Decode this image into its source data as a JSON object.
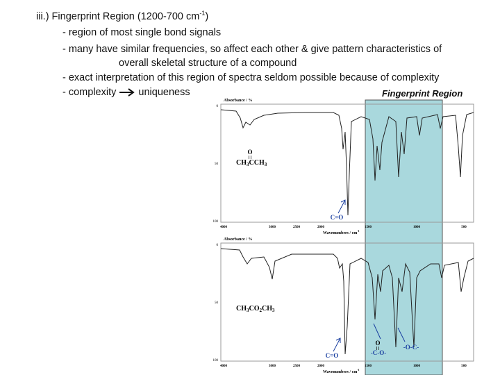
{
  "slide": {
    "title": {
      "text": "iii.) Fingerprint Region (1200-700 cm",
      "sup": "-1",
      "end": ")"
    },
    "bullets": [
      "- region of most single bond signals",
      "- many have similar frequencies, so affect each other & give pattern characteristics of",
      "overall skeletal structure of a compound",
      "- exact interpretation of this region of spectra seldom possible because of complexity"
    ],
    "last_bullet": {
      "before": "- complexity",
      "after": "uniqueness"
    },
    "region_label": "Fingerprint Region",
    "spectra": [
      {
        "y_label": "Absorbance / %",
        "x_label": "Wavenumbers / cm",
        "x_label_sup": "-1",
        "x_ticks": [
          "4000",
          "3000",
          "2500",
          "2000",
          "1500",
          "1000",
          "500"
        ],
        "y_ticks": [
          "0",
          "50",
          "100"
        ],
        "formula": [
          "CH",
          "3",
          "CCH",
          "3"
        ],
        "carbonyl_o": "O",
        "peak_label": "C=O"
      },
      {
        "y_label": "Absorbance / %",
        "x_label": "Wavenumbers / cm",
        "x_label_sup": "-1",
        "x_ticks": [
          "4000",
          "3000",
          "2500",
          "2000",
          "1500",
          "1000",
          "500"
        ],
        "y_ticks": [
          "0",
          "50",
          "100"
        ],
        "formula": [
          "CH",
          "3",
          "CO",
          "2",
          "CH",
          "3"
        ],
        "carbonyl_o": "O",
        "peak_label": "C=O",
        "c_o_label": "-C-O-",
        "o_c_label": "-O-C-"
      }
    ]
  }
}
